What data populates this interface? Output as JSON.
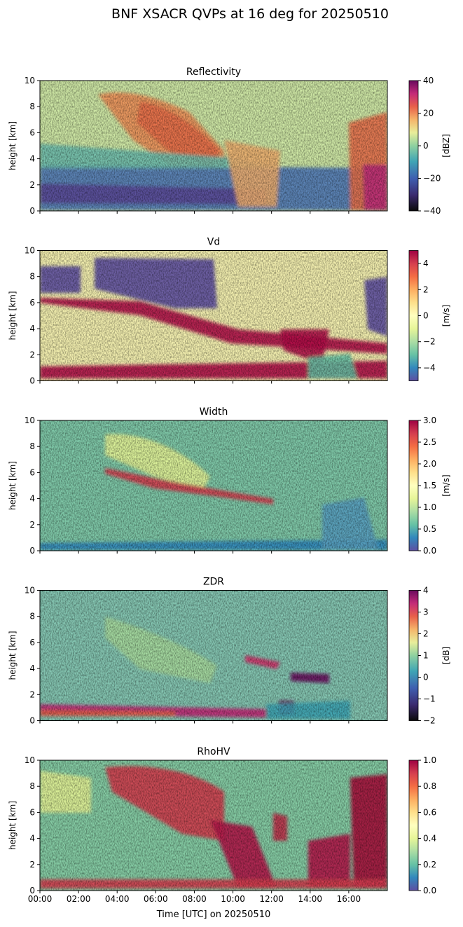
{
  "figure": {
    "title": "BNF XSACR QVPs at 16 deg for 20250510",
    "xlabel": "Time [UTC] on 20250510"
  },
  "chart_data": [
    {
      "type": "heatmap",
      "title": "Reflectivity",
      "ylabel": "height [km]",
      "ylim": [
        0,
        10
      ],
      "yticks": [
        "0",
        "2",
        "4",
        "6",
        "8",
        "10"
      ],
      "xlim_hours": [
        0,
        18
      ],
      "xticks": [
        "00:00",
        "02:00",
        "04:00",
        "06:00",
        "08:00",
        "10:00",
        "12:00",
        "14:00",
        "16:00"
      ],
      "colorbar": {
        "label": "[dBZ]",
        "range": [
          -40,
          40
        ],
        "ticks": [
          "−40",
          "−20",
          "0",
          "20",
          "40"
        ],
        "colormap": "HomeyerRainbow"
      }
    },
    {
      "type": "heatmap",
      "title": "Vd",
      "ylabel": "height [km]",
      "ylim": [
        0,
        10
      ],
      "yticks": [
        "0",
        "2",
        "4",
        "6",
        "8",
        "10"
      ],
      "xlim_hours": [
        0,
        18
      ],
      "xticks": [
        "00:00",
        "02:00",
        "04:00",
        "06:00",
        "08:00",
        "10:00",
        "12:00",
        "14:00",
        "16:00"
      ],
      "colorbar": {
        "label": "[m/s]",
        "range": [
          -5,
          5
        ],
        "ticks": [
          "−4",
          "−2",
          "0",
          "2",
          "4"
        ],
        "colormap": "Spectral_r"
      }
    },
    {
      "type": "heatmap",
      "title": "Width",
      "ylabel": "height [km]",
      "ylim": [
        0,
        10
      ],
      "yticks": [
        "0",
        "2",
        "4",
        "6",
        "8",
        "10"
      ],
      "xlim_hours": [
        0,
        18
      ],
      "xticks": [
        "00:00",
        "02:00",
        "04:00",
        "06:00",
        "08:00",
        "10:00",
        "12:00",
        "14:00",
        "16:00"
      ],
      "colorbar": {
        "label": "[m/s]",
        "range": [
          0,
          3
        ],
        "ticks": [
          "0.0",
          "0.5",
          "1.0",
          "1.5",
          "2.0",
          "2.5",
          "3.0"
        ],
        "colormap": "Spectral_r"
      }
    },
    {
      "type": "heatmap",
      "title": "ZDR",
      "ylabel": "height [km]",
      "ylim": [
        0,
        10
      ],
      "yticks": [
        "0",
        "2",
        "4",
        "6",
        "8",
        "10"
      ],
      "xlim_hours": [
        0,
        18
      ],
      "xticks": [
        "00:00",
        "02:00",
        "04:00",
        "06:00",
        "08:00",
        "10:00",
        "12:00",
        "14:00",
        "16:00"
      ],
      "colorbar": {
        "label": "[dB]",
        "range": [
          -2,
          4
        ],
        "ticks": [
          "−2",
          "−1",
          "0",
          "1",
          "2",
          "3",
          "4"
        ],
        "colormap": "HomeyerRainbow"
      }
    },
    {
      "type": "heatmap",
      "title": "RhoHV",
      "ylabel": "height [km]",
      "ylim": [
        0,
        10
      ],
      "yticks": [
        "0",
        "2",
        "4",
        "6",
        "8",
        "10"
      ],
      "xlim_hours": [
        0,
        18
      ],
      "xticks": [
        "00:00",
        "02:00",
        "04:00",
        "06:00",
        "08:00",
        "10:00",
        "12:00",
        "14:00",
        "16:00"
      ],
      "colorbar": {
        "label": "",
        "range": [
          0,
          1
        ],
        "ticks": [
          "0.0",
          "0.2",
          "0.4",
          "0.6",
          "0.8",
          "1.0"
        ],
        "colormap": "Spectral_r"
      }
    }
  ]
}
